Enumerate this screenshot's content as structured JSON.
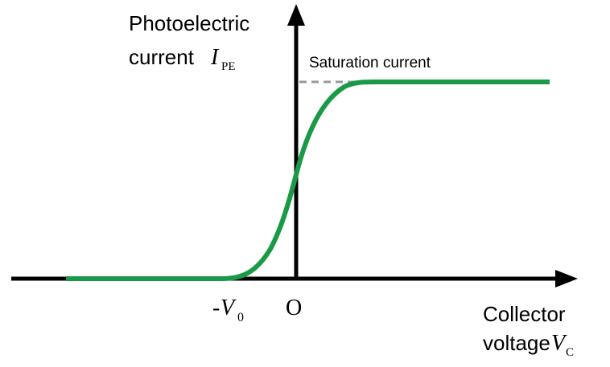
{
  "y_axis": {
    "line1": "Photoelectric",
    "line2": "current",
    "symbol": "I",
    "subscript": "PE"
  },
  "x_axis": {
    "line1": "Collector",
    "line2": "voltage",
    "symbol": "V",
    "subscript": "C"
  },
  "saturation_label": "Saturation current",
  "stopping_voltage": {
    "prefix": "-",
    "symbol": "V",
    "subscript": "0"
  },
  "origin_label": "O",
  "colors": {
    "axis": "#000000",
    "curve": "#1a9a47",
    "dashed": "#999999"
  }
}
